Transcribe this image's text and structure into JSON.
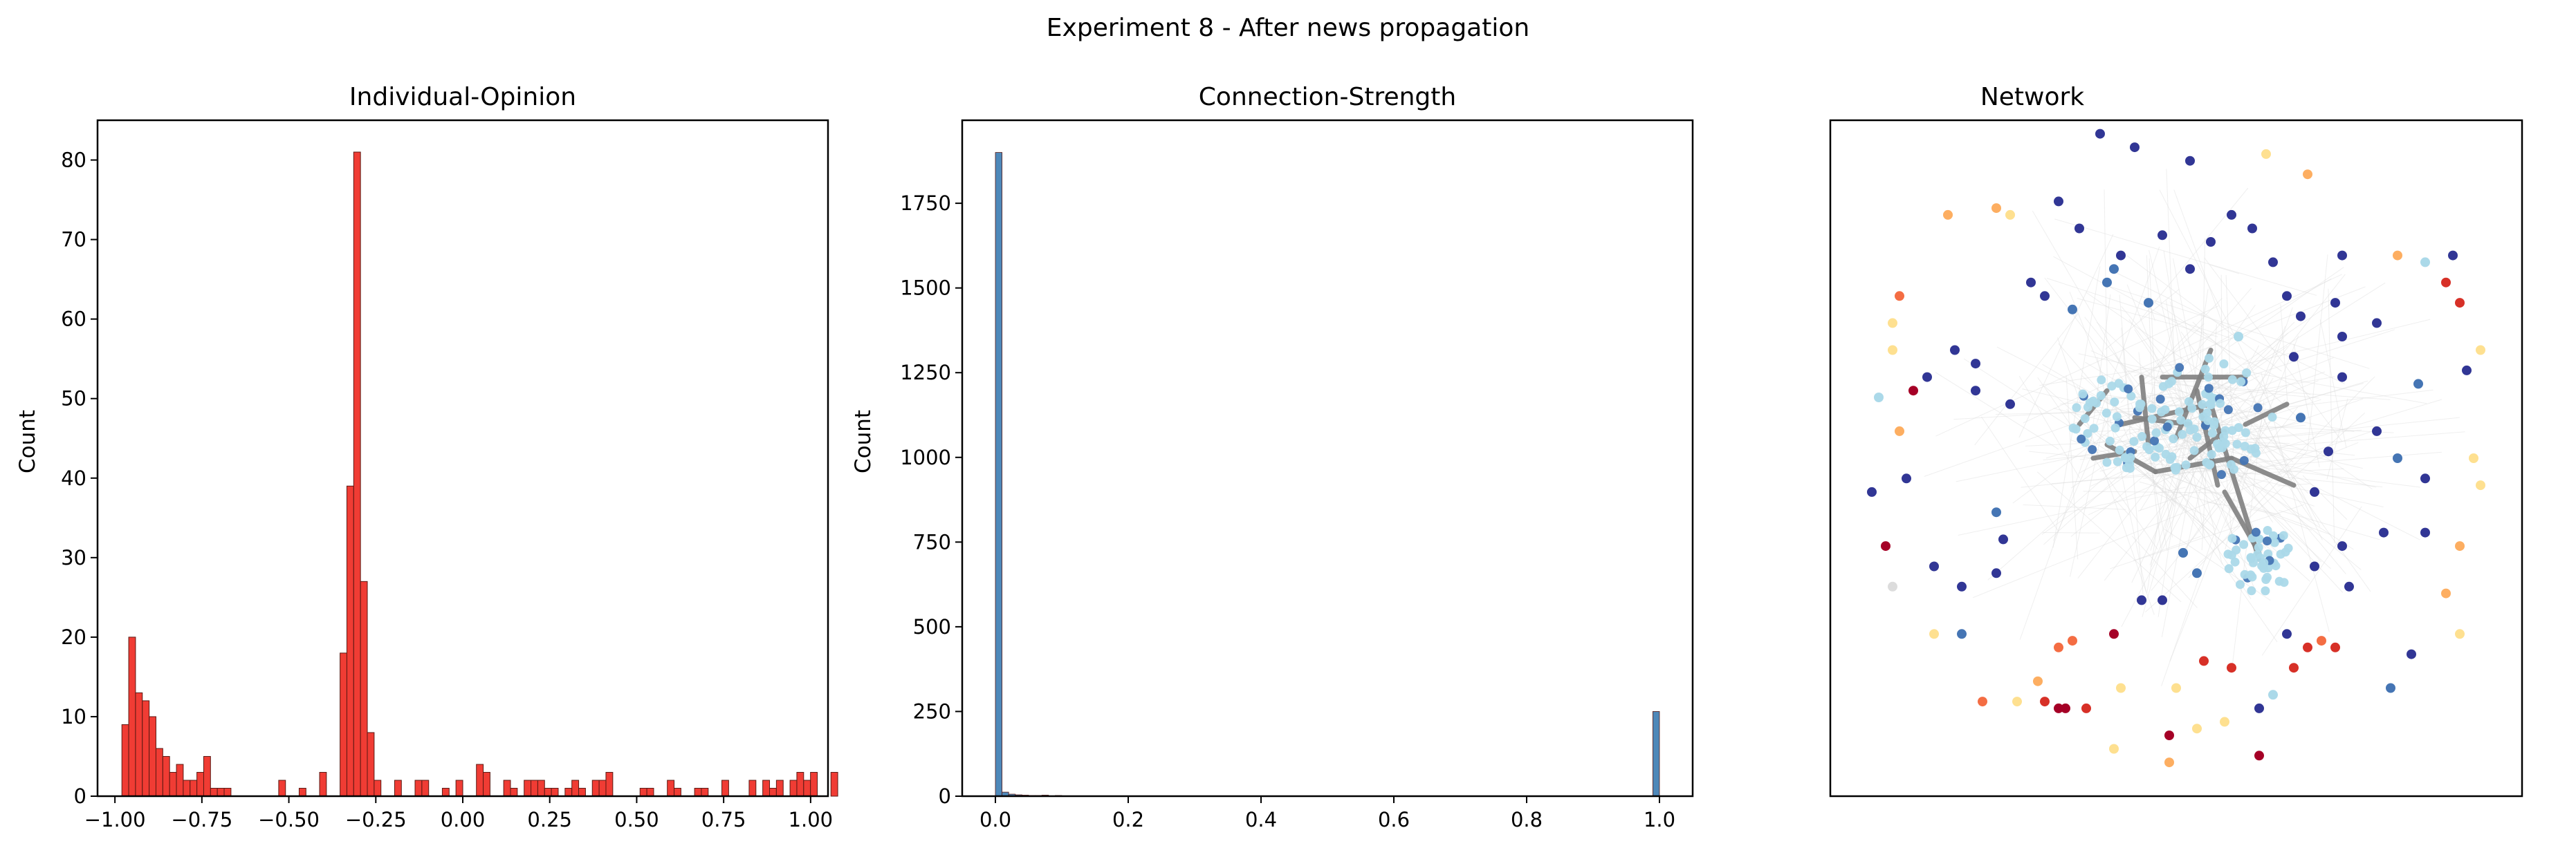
{
  "figure": {
    "title": "Experiment 8 - After news propagation"
  },
  "chart_data": [
    {
      "type": "bar",
      "title": "Individual-Opinion",
      "xlabel": "",
      "ylabel": "Count",
      "xlim": [
        -1.05,
        1.05
      ],
      "ylim": [
        0,
        85
      ],
      "xticks": [
        -1.0,
        -0.75,
        -0.5,
        -0.25,
        0.0,
        0.25,
        0.5,
        0.75,
        1.0
      ],
      "xtick_labels": [
        "−1.00",
        "−0.75",
        "−0.50",
        "−0.25",
        "0.00",
        "0.25",
        "0.50",
        "0.75",
        "1.00"
      ],
      "yticks": [
        0,
        10,
        20,
        30,
        40,
        50,
        60,
        70,
        80
      ],
      "ytick_labels": [
        "0",
        "10",
        "20",
        "30",
        "40",
        "50",
        "60",
        "70",
        "80"
      ],
      "color": "#ef2b23",
      "bin_start": -0.98,
      "bin_width": 0.0196,
      "values": [
        9,
        20,
        13,
        12,
        10,
        6,
        5,
        3,
        4,
        2,
        2,
        3,
        5,
        1,
        1,
        1,
        0,
        0,
        0,
        0,
        0,
        0,
        0,
        2,
        0,
        0,
        1,
        0,
        0,
        3,
        0,
        0,
        18,
        39,
        81,
        27,
        8,
        2,
        0,
        0,
        2,
        0,
        0,
        2,
        2,
        0,
        0,
        1,
        0,
        2,
        0,
        0,
        4,
        3,
        0,
        0,
        2,
        1,
        0,
        2,
        2,
        2,
        1,
        1,
        0,
        1,
        2,
        1,
        0,
        2,
        2,
        3,
        0,
        0,
        0,
        0,
        1,
        1,
        0,
        0,
        2,
        1,
        0,
        0,
        1,
        1,
        0,
        0,
        2,
        0,
        0,
        0,
        2,
        0,
        2,
        1,
        2,
        0,
        2,
        3,
        2,
        3,
        0,
        0,
        3
      ]
    },
    {
      "type": "bar",
      "title": "Connection-Strength",
      "xlabel": "",
      "ylabel": "Count",
      "xlim": [
        -0.05,
        1.05
      ],
      "ylim": [
        0,
        1995
      ],
      "xticks": [
        0.0,
        0.2,
        0.4,
        0.6,
        0.8,
        1.0
      ],
      "xtick_labels": [
        "0.0",
        "0.2",
        "0.4",
        "0.6",
        "0.8",
        "1.0"
      ],
      "yticks": [
        0,
        250,
        500,
        750,
        1000,
        1250,
        1500,
        1750
      ],
      "ytick_labels": [
        "0",
        "250",
        "500",
        "750",
        "1000",
        "1250",
        "1500",
        "1750"
      ],
      "color": "#3f7eb3",
      "bin_start": 0.0,
      "bin_width": 0.01,
      "values": [
        1900,
        12,
        6,
        4,
        3,
        2,
        2,
        3,
        1,
        2,
        0,
        0,
        0,
        0,
        0,
        0,
        0,
        0,
        0,
        0,
        0,
        0,
        0,
        0,
        0,
        0,
        0,
        0,
        0,
        0,
        0,
        0,
        0,
        0,
        0,
        0,
        0,
        0,
        0,
        0,
        0,
        0,
        0,
        0,
        0,
        0,
        0,
        0,
        0,
        0,
        0,
        0,
        0,
        0,
        0,
        0,
        0,
        0,
        0,
        0,
        0,
        0,
        0,
        0,
        0,
        0,
        0,
        0,
        0,
        0,
        0,
        0,
        0,
        0,
        0,
        0,
        0,
        0,
        0,
        0,
        0,
        0,
        0,
        0,
        0,
        0,
        0,
        0,
        0,
        0,
        0,
        0,
        0,
        0,
        0,
        0,
        0,
        0,
        0,
        250
      ]
    },
    {
      "type": "scatter",
      "title": "Network",
      "xlabel": "",
      "ylabel": "",
      "xlim": [
        0,
        1
      ],
      "ylim": [
        0,
        1
      ],
      "grid": false,
      "node_colors": {
        "dark-blue": "#313695",
        "mid-blue": "#4575b4",
        "light-blue": "#abd9e9",
        "pale-yellow": "#fee090",
        "orange": "#fdae61",
        "red-orange": "#f46d43",
        "red": "#d73027",
        "dark-red": "#a50026",
        "edge-gray": "#808080",
        "faint-edge": "#dcdcdc"
      },
      "clusters": [
        {
          "name": "core-cluster",
          "cx": 0.55,
          "cy": 0.56,
          "r": 0.09,
          "count": 80,
          "color": "light-blue"
        },
        {
          "name": "left-cluster",
          "cx": 0.42,
          "cy": 0.55,
          "r": 0.07,
          "count": 55,
          "color": "light-blue"
        },
        {
          "name": "lower-cluster",
          "cx": 0.62,
          "cy": 0.35,
          "r": 0.05,
          "count": 45,
          "color": "light-blue"
        }
      ],
      "nodes": [
        {
          "x": 0.39,
          "y": 0.98,
          "c": "dark-blue"
        },
        {
          "x": 0.44,
          "y": 0.96,
          "c": "dark-blue"
        },
        {
          "x": 0.52,
          "y": 0.94,
          "c": "dark-blue"
        },
        {
          "x": 0.63,
          "y": 0.95,
          "c": "pale-yellow"
        },
        {
          "x": 0.69,
          "y": 0.92,
          "c": "orange"
        },
        {
          "x": 0.58,
          "y": 0.86,
          "c": "dark-blue"
        },
        {
          "x": 0.61,
          "y": 0.84,
          "c": "dark-blue"
        },
        {
          "x": 0.55,
          "y": 0.82,
          "c": "dark-blue"
        },
        {
          "x": 0.48,
          "y": 0.83,
          "c": "dark-blue"
        },
        {
          "x": 0.42,
          "y": 0.8,
          "c": "dark-blue"
        },
        {
          "x": 0.36,
          "y": 0.84,
          "c": "dark-blue"
        },
        {
          "x": 0.33,
          "y": 0.88,
          "c": "dark-blue"
        },
        {
          "x": 0.26,
          "y": 0.86,
          "c": "pale-yellow"
        },
        {
          "x": 0.24,
          "y": 0.87,
          "c": "orange"
        },
        {
          "x": 0.17,
          "y": 0.86,
          "c": "orange"
        },
        {
          "x": 0.29,
          "y": 0.76,
          "c": "dark-blue"
        },
        {
          "x": 0.31,
          "y": 0.74,
          "c": "dark-blue"
        },
        {
          "x": 0.35,
          "y": 0.72,
          "c": "mid-blue"
        },
        {
          "x": 0.4,
          "y": 0.76,
          "c": "mid-blue"
        },
        {
          "x": 0.41,
          "y": 0.78,
          "c": "mid-blue"
        },
        {
          "x": 0.46,
          "y": 0.73,
          "c": "mid-blue"
        },
        {
          "x": 0.52,
          "y": 0.78,
          "c": "dark-blue"
        },
        {
          "x": 0.66,
          "y": 0.74,
          "c": "dark-blue"
        },
        {
          "x": 0.68,
          "y": 0.71,
          "c": "dark-blue"
        },
        {
          "x": 0.74,
          "y": 0.68,
          "c": "dark-blue"
        },
        {
          "x": 0.79,
          "y": 0.7,
          "c": "dark-blue"
        },
        {
          "x": 0.82,
          "y": 0.8,
          "c": "orange"
        },
        {
          "x": 0.86,
          "y": 0.79,
          "c": "light-blue"
        },
        {
          "x": 0.9,
          "y": 0.8,
          "c": "dark-blue"
        },
        {
          "x": 0.89,
          "y": 0.76,
          "c": "red"
        },
        {
          "x": 0.91,
          "y": 0.73,
          "c": "red"
        },
        {
          "x": 0.94,
          "y": 0.66,
          "c": "pale-yellow"
        },
        {
          "x": 0.92,
          "y": 0.63,
          "c": "dark-blue"
        },
        {
          "x": 0.85,
          "y": 0.61,
          "c": "mid-blue"
        },
        {
          "x": 0.79,
          "y": 0.54,
          "c": "dark-blue"
        },
        {
          "x": 0.82,
          "y": 0.5,
          "c": "mid-blue"
        },
        {
          "x": 0.86,
          "y": 0.47,
          "c": "dark-blue"
        },
        {
          "x": 0.93,
          "y": 0.5,
          "c": "pale-yellow"
        },
        {
          "x": 0.94,
          "y": 0.46,
          "c": "pale-yellow"
        },
        {
          "x": 0.91,
          "y": 0.37,
          "c": "orange"
        },
        {
          "x": 0.86,
          "y": 0.39,
          "c": "dark-blue"
        },
        {
          "x": 0.8,
          "y": 0.39,
          "c": "dark-blue"
        },
        {
          "x": 0.74,
          "y": 0.37,
          "c": "dark-blue"
        },
        {
          "x": 0.75,
          "y": 0.31,
          "c": "dark-blue"
        },
        {
          "x": 0.89,
          "y": 0.3,
          "c": "orange"
        },
        {
          "x": 0.91,
          "y": 0.24,
          "c": "pale-yellow"
        },
        {
          "x": 0.84,
          "y": 0.21,
          "c": "dark-blue"
        },
        {
          "x": 0.81,
          "y": 0.16,
          "c": "mid-blue"
        },
        {
          "x": 0.73,
          "y": 0.22,
          "c": "red"
        },
        {
          "x": 0.71,
          "y": 0.23,
          "c": "red-orange"
        },
        {
          "x": 0.69,
          "y": 0.22,
          "c": "red"
        },
        {
          "x": 0.67,
          "y": 0.19,
          "c": "red"
        },
        {
          "x": 0.66,
          "y": 0.24,
          "c": "dark-blue"
        },
        {
          "x": 0.64,
          "y": 0.15,
          "c": "light-blue"
        },
        {
          "x": 0.62,
          "y": 0.13,
          "c": "dark-blue"
        },
        {
          "x": 0.58,
          "y": 0.19,
          "c": "red"
        },
        {
          "x": 0.54,
          "y": 0.2,
          "c": "red"
        },
        {
          "x": 0.5,
          "y": 0.16,
          "c": "pale-yellow"
        },
        {
          "x": 0.53,
          "y": 0.1,
          "c": "pale-yellow"
        },
        {
          "x": 0.57,
          "y": 0.11,
          "c": "pale-yellow"
        },
        {
          "x": 0.62,
          "y": 0.06,
          "c": "dark-red"
        },
        {
          "x": 0.49,
          "y": 0.09,
          "c": "dark-red"
        },
        {
          "x": 0.49,
          "y": 0.05,
          "c": "orange"
        },
        {
          "x": 0.41,
          "y": 0.07,
          "c": "pale-yellow"
        },
        {
          "x": 0.42,
          "y": 0.16,
          "c": "pale-yellow"
        },
        {
          "x": 0.37,
          "y": 0.13,
          "c": "red"
        },
        {
          "x": 0.34,
          "y": 0.13,
          "c": "dark-red"
        },
        {
          "x": 0.33,
          "y": 0.13,
          "c": "dark-red"
        },
        {
          "x": 0.31,
          "y": 0.14,
          "c": "red"
        },
        {
          "x": 0.3,
          "y": 0.17,
          "c": "orange"
        },
        {
          "x": 0.27,
          "y": 0.14,
          "c": "pale-yellow"
        },
        {
          "x": 0.22,
          "y": 0.14,
          "c": "red-orange"
        },
        {
          "x": 0.33,
          "y": 0.22,
          "c": "red-orange"
        },
        {
          "x": 0.35,
          "y": 0.23,
          "c": "red-orange"
        },
        {
          "x": 0.41,
          "y": 0.24,
          "c": "dark-red"
        },
        {
          "x": 0.45,
          "y": 0.29,
          "c": "dark-blue"
        },
        {
          "x": 0.48,
          "y": 0.29,
          "c": "dark-blue"
        },
        {
          "x": 0.19,
          "y": 0.24,
          "c": "mid-blue"
        },
        {
          "x": 0.15,
          "y": 0.24,
          "c": "pale-yellow"
        },
        {
          "x": 0.15,
          "y": 0.34,
          "c": "dark-blue"
        },
        {
          "x": 0.19,
          "y": 0.31,
          "c": "dark-blue"
        },
        {
          "x": 0.24,
          "y": 0.33,
          "c": "dark-blue"
        },
        {
          "x": 0.24,
          "y": 0.42,
          "c": "mid-blue"
        },
        {
          "x": 0.09,
          "y": 0.31,
          "c": "faint-edge"
        },
        {
          "x": 0.08,
          "y": 0.37,
          "c": "dark-red"
        },
        {
          "x": 0.06,
          "y": 0.45,
          "c": "dark-blue"
        },
        {
          "x": 0.11,
          "y": 0.47,
          "c": "dark-blue"
        },
        {
          "x": 0.1,
          "y": 0.54,
          "c": "orange"
        },
        {
          "x": 0.07,
          "y": 0.59,
          "c": "light-blue"
        },
        {
          "x": 0.12,
          "y": 0.6,
          "c": "dark-red"
        },
        {
          "x": 0.14,
          "y": 0.62,
          "c": "dark-blue"
        },
        {
          "x": 0.09,
          "y": 0.66,
          "c": "pale-yellow"
        },
        {
          "x": 0.09,
          "y": 0.7,
          "c": "pale-yellow"
        },
        {
          "x": 0.1,
          "y": 0.74,
          "c": "red-orange"
        },
        {
          "x": 0.18,
          "y": 0.66,
          "c": "dark-blue"
        },
        {
          "x": 0.21,
          "y": 0.64,
          "c": "dark-blue"
        },
        {
          "x": 0.21,
          "y": 0.6,
          "c": "dark-blue"
        },
        {
          "x": 0.26,
          "y": 0.58,
          "c": "dark-blue"
        },
        {
          "x": 0.25,
          "y": 0.38,
          "c": "dark-blue"
        },
        {
          "x": 0.51,
          "y": 0.36,
          "c": "mid-blue"
        },
        {
          "x": 0.53,
          "y": 0.33,
          "c": "mid-blue"
        },
        {
          "x": 0.7,
          "y": 0.34,
          "c": "dark-blue"
        },
        {
          "x": 0.7,
          "y": 0.45,
          "c": "dark-blue"
        },
        {
          "x": 0.72,
          "y": 0.51,
          "c": "dark-blue"
        },
        {
          "x": 0.68,
          "y": 0.56,
          "c": "mid-blue"
        },
        {
          "x": 0.67,
          "y": 0.65,
          "c": "dark-blue"
        },
        {
          "x": 0.59,
          "y": 0.68,
          "c": "light-blue"
        },
        {
          "x": 0.64,
          "y": 0.79,
          "c": "dark-blue"
        },
        {
          "x": 0.74,
          "y": 0.8,
          "c": "dark-blue"
        },
        {
          "x": 0.73,
          "y": 0.73,
          "c": "dark-blue"
        },
        {
          "x": 0.74,
          "y": 0.62,
          "c": "dark-blue"
        }
      ],
      "links": [
        [
          0.42,
          0.55,
          0.55,
          0.58
        ],
        [
          0.55,
          0.58,
          0.62,
          0.35
        ],
        [
          0.48,
          0.62,
          0.6,
          0.62
        ],
        [
          0.4,
          0.52,
          0.47,
          0.48
        ],
        [
          0.47,
          0.48,
          0.58,
          0.5
        ],
        [
          0.53,
          0.6,
          0.56,
          0.46
        ],
        [
          0.57,
          0.45,
          0.62,
          0.36
        ],
        [
          0.44,
          0.56,
          0.52,
          0.55
        ],
        [
          0.36,
          0.55,
          0.4,
          0.6
        ],
        [
          0.6,
          0.55,
          0.66,
          0.58
        ],
        [
          0.58,
          0.5,
          0.67,
          0.46
        ],
        [
          0.5,
          0.53,
          0.55,
          0.66
        ],
        [
          0.45,
          0.62,
          0.46,
          0.52
        ],
        [
          0.52,
          0.5,
          0.57,
          0.54
        ],
        [
          0.38,
          0.5,
          0.44,
          0.51
        ]
      ]
    }
  ]
}
